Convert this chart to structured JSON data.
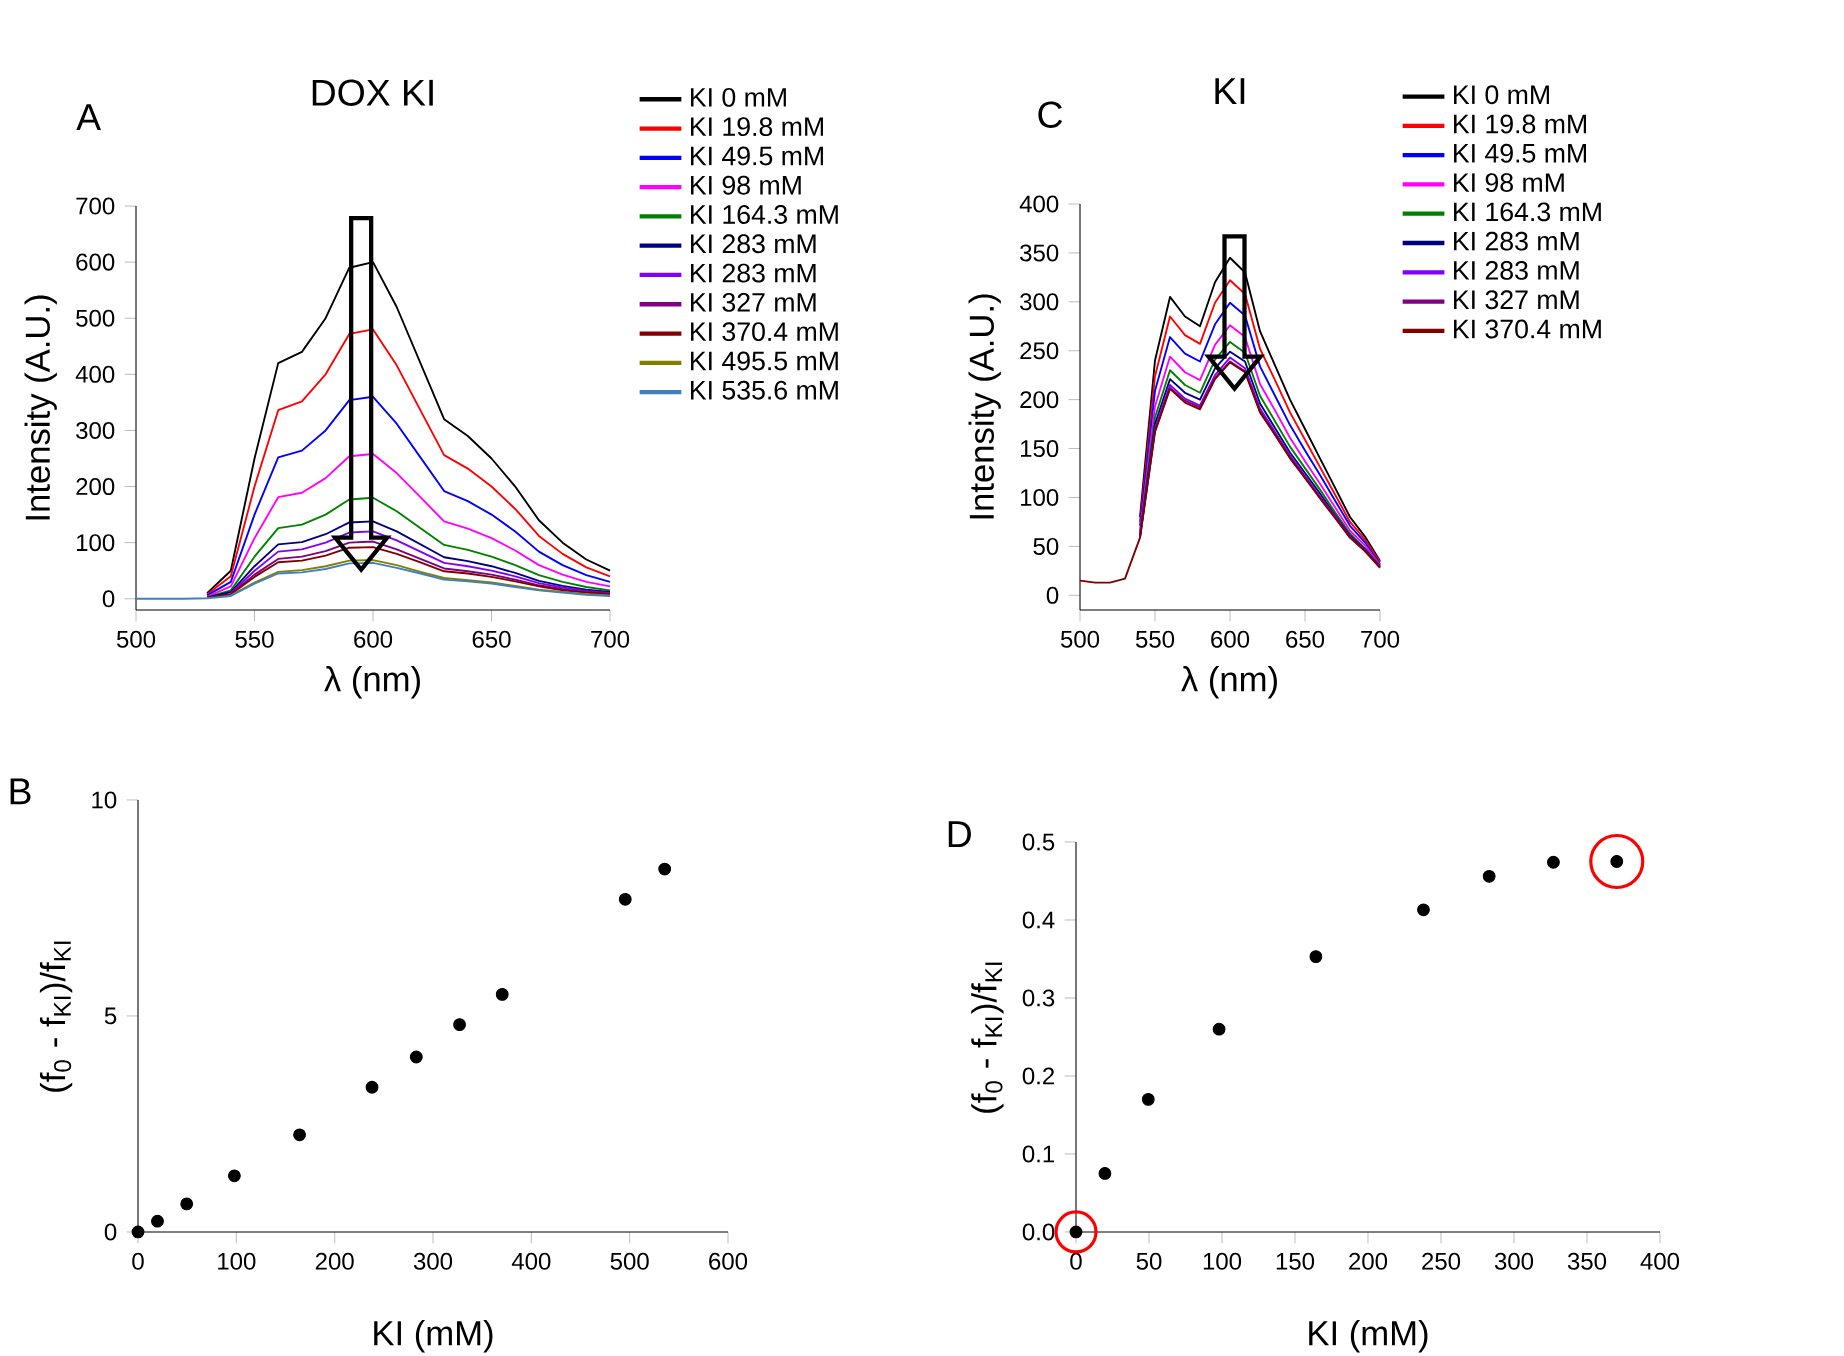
{
  "chart_data": [
    {
      "type": "line",
      "title": "DOX KI",
      "annotations": [
        "A"
      ],
      "xlabel": "λ (nm)",
      "ylabel": "Intensity (A.U.)",
      "legend": "right",
      "x": [
        500,
        510,
        520,
        530,
        540,
        550,
        560,
        570,
        580,
        590,
        600,
        610,
        620,
        630,
        640,
        650,
        660,
        670,
        680,
        690,
        700
      ],
      "xlim": [
        500,
        700
      ],
      "ylim": [
        -20,
        700
      ],
      "xticks": [
        500,
        550,
        600,
        650,
        700
      ],
      "yticks": [
        0,
        100,
        200,
        300,
        400,
        500,
        600,
        700
      ],
      "series": [
        {
          "name": "KI 0 mM",
          "color": "#000000",
          "values": [
            null,
            null,
            null,
            10,
            50,
            250,
            420,
            440,
            500,
            590,
            600,
            520,
            420,
            320,
            290,
            250,
            200,
            140,
            100,
            70,
            50
          ]
        },
        {
          "name": "KI 19.8 mM",
          "color": "#ff0000",
          "values": [
            null,
            null,
            null,
            8,
            40,
            200,
            336,
            352,
            400,
            472,
            480,
            416,
            336,
            256,
            232,
            200,
            160,
            112,
            80,
            56,
            40
          ]
        },
        {
          "name": "KI 49.5 mM",
          "color": "#0000ff",
          "values": [
            null,
            null,
            null,
            6,
            30,
            150,
            252,
            264,
            300,
            354,
            360,
            312,
            252,
            192,
            174,
            150,
            120,
            84,
            60,
            42,
            30
          ]
        },
        {
          "name": "KI 98 mM",
          "color": "#ff00ff",
          "values": [
            null,
            null,
            null,
            4,
            22,
            108,
            181,
            189,
            215,
            254,
            258,
            224,
            181,
            138,
            125,
            108,
            86,
            60,
            43,
            30,
            22
          ]
        },
        {
          "name": "KI 164.3 mM",
          "color": "#008000",
          "values": [
            null,
            null,
            null,
            3,
            15,
            75,
            126,
            132,
            150,
            177,
            180,
            156,
            126,
            96,
            87,
            75,
            60,
            42,
            30,
            21,
            15
          ]
        },
        {
          "name": "KI 283 mM",
          "color": "#000080",
          "values": [
            null,
            null,
            null,
            2,
            12,
            58,
            97,
            101,
            115,
            136,
            138,
            120,
            97,
            74,
            67,
            58,
            46,
            32,
            23,
            16,
            12
          ]
        },
        {
          "name": "KI 283 mM",
          "color": "#8000ff",
          "values": [
            null,
            null,
            null,
            null,
            10,
            50,
            84,
            88,
            100,
            118,
            120,
            104,
            84,
            64,
            58,
            50,
            40,
            28,
            20,
            14,
            10
          ]
        },
        {
          "name": "KI 327 mM",
          "color": "#800080",
          "values": [
            null,
            null,
            null,
            null,
            9,
            43,
            71,
            75,
            85,
            100,
            102,
            88,
            71,
            54,
            49,
            43,
            34,
            24,
            17,
            12,
            9
          ]
        },
        {
          "name": "KI 370.4 mM",
          "color": "#800000",
          "values": [
            null,
            null,
            null,
            2,
            8,
            39,
            65,
            68,
            77,
            91,
            92,
            80,
            65,
            49,
            45,
            39,
            31,
            22,
            15,
            11,
            8
          ]
        },
        {
          "name": "KI 495.5 mM",
          "color": "#808000",
          "values": [
            null,
            null,
            null,
            null,
            6,
            29,
            48,
            51,
            58,
            68,
            69,
            60,
            48,
            37,
            33,
            29,
            23,
            16,
            12,
            8,
            6
          ]
        },
        {
          "name": "KI 535.6 mM",
          "color": "#4080c0",
          "values": [
            0,
            0,
            0,
            1,
            5,
            27,
            45,
            47,
            53,
            63,
            64,
            55,
            45,
            34,
            31,
            27,
            21,
            15,
            11,
            7,
            5
          ]
        }
      ]
    },
    {
      "type": "scatter",
      "annotations": [
        "B"
      ],
      "xlabel": "KI (mM)",
      "ylabel": "(f$_{0}$ - f$_{KI}$)/f$_{KI}$",
      "marker": "circle",
      "color": "#000000",
      "x": [
        0,
        19.8,
        49.5,
        98,
        164.3,
        238,
        283,
        327,
        370.4,
        495.5,
        535.6
      ],
      "values": [
        0,
        0.25,
        0.65,
        1.3,
        2.25,
        3.35,
        4.05,
        4.8,
        5.5,
        7.7,
        8.4
      ],
      "xlim": [
        0,
        600
      ],
      "ylim": [
        0,
        10
      ],
      "xticks": [
        0,
        100,
        200,
        300,
        400,
        500,
        600
      ],
      "yticks": [
        0,
        5,
        10
      ]
    },
    {
      "type": "line",
      "title": "KI",
      "annotations": [
        "C"
      ],
      "xlabel": "λ (nm)",
      "ylabel": "Intensity (A.U.)",
      "legend": "right",
      "x": [
        500,
        510,
        520,
        530,
        540,
        550,
        560,
        570,
        580,
        590,
        600,
        610,
        620,
        630,
        640,
        650,
        660,
        670,
        680,
        690,
        700
      ],
      "xlim": [
        500,
        700
      ],
      "ylim": [
        -15,
        400
      ],
      "xticks": [
        500,
        550,
        600,
        650,
        700
      ],
      "yticks": [
        0,
        50,
        100,
        150,
        200,
        250,
        300,
        350,
        400
      ],
      "series": [
        {
          "name": "KI 0 mM",
          "color": "#000000",
          "values": [
            null,
            null,
            null,
            null,
            80,
            240,
            305,
            285,
            275,
            320,
            345,
            330,
            270,
            235,
            200,
            170,
            140,
            110,
            80,
            60,
            35
          ]
        },
        {
          "name": "KI 19.8 mM",
          "color": "#ff0000",
          "values": [
            null,
            null,
            null,
            null,
            75,
            224,
            285,
            266,
            257,
            299,
            322,
            308,
            252,
            220,
            187,
            159,
            131,
            103,
            75,
            57,
            34
          ]
        },
        {
          "name": "KI 49.5 mM",
          "color": "#0000ff",
          "values": [
            null,
            null,
            null,
            null,
            71,
            209,
            264,
            247,
            239,
            277,
            299,
            286,
            234,
            204,
            174,
            148,
            123,
            97,
            71,
            54,
            32
          ]
        },
        {
          "name": "KI 98 mM",
          "color": "#ff00ff",
          "values": [
            null,
            null,
            null,
            null,
            66,
            193,
            244,
            228,
            220,
            256,
            276,
            264,
            216,
            189,
            161,
            137,
            114,
            90,
            66,
            51,
            31
          ]
        },
        {
          "name": "KI 164.3 mM",
          "color": "#008000",
          "values": [
            null,
            null,
            null,
            null,
            63,
            182,
            230,
            215,
            207,
            241,
            259,
            248,
            204,
            178,
            152,
            130,
            108,
            85,
            63,
            48,
            30
          ]
        },
        {
          "name": "KI 283 mM",
          "color": "#000080",
          "values": [
            null,
            null,
            null,
            null,
            61,
            175,
            221,
            207,
            200,
            232,
            249,
            239,
            196,
            171,
            146,
            125,
            104,
            82,
            61,
            47,
            29
          ]
        },
        {
          "name": "KI 283 mM",
          "color": "#8000ff",
          "values": [
            null,
            null,
            null,
            null,
            60,
            170,
            215,
            201,
            194,
            225,
            243,
            232,
            191,
            167,
            143,
            122,
            101,
            81,
            60,
            46,
            29
          ]
        },
        {
          "name": "KI 327 mM",
          "color": "#800080",
          "values": [
            null,
            null,
            null,
            null,
            59,
            168,
            212,
            199,
            192,
            222,
            239,
            229,
            188,
            165,
            141,
            120,
            100,
            80,
            59,
            46,
            29
          ]
        },
        {
          "name": "KI 370.4 mM",
          "color": "#800000",
          "values": [
            15,
            13,
            13,
            17,
            59,
            167,
            211,
            197,
            190,
            221,
            238,
            228,
            187,
            164,
            140,
            120,
            99,
            79,
            59,
            45,
            28
          ]
        }
      ]
    },
    {
      "type": "scatter",
      "annotations": [
        "D"
      ],
      "xlabel": "KI (mM)",
      "ylabel": "(f$_{0}$ - f$_{KI}$)/f$_{KI}$",
      "marker": "circle",
      "color": "#000000",
      "x": [
        0,
        19.8,
        49.5,
        98,
        164.3,
        238,
        283,
        327,
        370.4
      ],
      "values": [
        0,
        0.075,
        0.17,
        0.26,
        0.353,
        0.413,
        0.456,
        0.474,
        0.475
      ],
      "xlim": [
        0,
        400
      ],
      "ylim": [
        0,
        0.5
      ],
      "xticks": [
        0,
        50,
        100,
        150,
        200,
        250,
        300,
        350,
        400
      ],
      "yticks": [
        {
          "value": 0,
          "label": "0.0"
        },
        0.1,
        0.2,
        0.3,
        0.4,
        0.5
      ]
    }
  ]
}
